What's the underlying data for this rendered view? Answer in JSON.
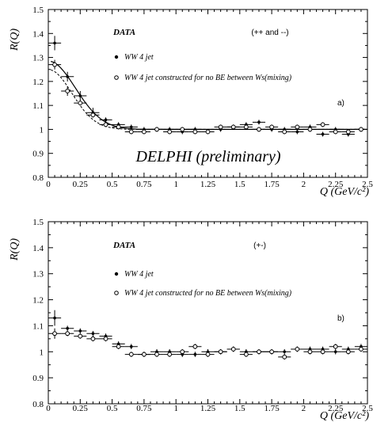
{
  "chart_data": [
    {
      "type": "scatter",
      "panel_tag": "a)",
      "charge_label": "(++ and --)",
      "data_label": "DATA",
      "watermark": "DELPHI (preliminary)",
      "ylabel": "R(Q)",
      "xlabel": "Q (GeV/c²)",
      "xlim": [
        0,
        2.5
      ],
      "ylim": [
        0.8,
        1.5
      ],
      "xticks": [
        "0",
        "0.25",
        "0.5",
        "0.75",
        "1",
        "1.25",
        "1.5",
        "1.75",
        "2",
        "2.25",
        "2.5"
      ],
      "yticks": [
        "0.8",
        "0.9",
        "1",
        "1.1",
        "1.2",
        "1.3",
        "1.4",
        "1.5"
      ],
      "series": [
        {
          "name": "WW 4 jet",
          "marker": "filled",
          "x": [
            0.05,
            0.15,
            0.25,
            0.35,
            0.45,
            0.55,
            0.65,
            0.75,
            0.85,
            0.95,
            1.05,
            1.15,
            1.25,
            1.35,
            1.45,
            1.55,
            1.65,
            1.75,
            1.85,
            1.95,
            2.05,
            2.15,
            2.25,
            2.35,
            2.45
          ],
          "y": [
            1.36,
            1.22,
            1.14,
            1.07,
            1.04,
            1.02,
            1.01,
            1.0,
            1.0,
            1.0,
            0.99,
            1.0,
            0.99,
            1.0,
            1.01,
            1.02,
            1.03,
            1.0,
            1.0,
            0.99,
            1.01,
            0.98,
            1.0,
            0.98,
            1.0
          ],
          "yerr": [
            0.03,
            0.02,
            0.02,
            0.02,
            0.01,
            0.01,
            0.01,
            0.01,
            0.01,
            0.01,
            0.01,
            0.01,
            0.01,
            0.01,
            0.01,
            0.01,
            0.01,
            0.01,
            0.01,
            0.01,
            0.01,
            0.01,
            0.01,
            0.01,
            0.01
          ]
        },
        {
          "name": "WW 4 jet constructed for no BE between Ws(mixing)",
          "marker": "open",
          "x": [
            0.05,
            0.15,
            0.25,
            0.35,
            0.45,
            0.55,
            0.65,
            0.75,
            0.85,
            0.95,
            1.05,
            1.15,
            1.25,
            1.35,
            1.45,
            1.55,
            1.65,
            1.75,
            1.85,
            1.95,
            2.05,
            2.15,
            2.25,
            2.35,
            2.45
          ],
          "y": [
            1.27,
            1.16,
            1.11,
            1.06,
            1.02,
            1.01,
            0.99,
            0.99,
            1.0,
            0.99,
            1.0,
            0.99,
            0.99,
            1.01,
            1.01,
            1.01,
            1.0,
            1.01,
            0.99,
            1.01,
            1.0,
            1.02,
            0.99,
            0.99,
            1.0
          ],
          "yerr": [
            0.02,
            0.02,
            0.01,
            0.01,
            0.01,
            0.01,
            0.01,
            0.01,
            0.01,
            0.01,
            0.01,
            0.01,
            0.01,
            0.01,
            0.01,
            0.01,
            0.01,
            0.01,
            0.01,
            0.01,
            0.01,
            0.01,
            0.01,
            0.01,
            0.01
          ]
        }
      ]
    },
    {
      "type": "scatter",
      "panel_tag": "b)",
      "charge_label": "(+-)",
      "data_label": "DATA",
      "ylabel": "R(Q)",
      "xlabel": "Q (GeV/c²)",
      "xlim": [
        0,
        2.5
      ],
      "ylim": [
        0.8,
        1.5
      ],
      "xticks": [
        "0",
        "0.25",
        "0.5",
        "0.75",
        "1",
        "1.25",
        "1.5",
        "1.75",
        "2",
        "2.25",
        "2.5"
      ],
      "yticks": [
        "0.8",
        "0.9",
        "1",
        "1.1",
        "1.2",
        "1.3",
        "1.4",
        "1.5"
      ],
      "series": [
        {
          "name": "WW 4 jet",
          "marker": "filled",
          "x": [
            0.05,
            0.15,
            0.25,
            0.35,
            0.45,
            0.55,
            0.65,
            0.75,
            0.85,
            0.95,
            1.05,
            1.15,
            1.25,
            1.35,
            1.45,
            1.55,
            1.65,
            1.75,
            1.85,
            1.95,
            2.05,
            2.15,
            2.25,
            2.35,
            2.45
          ],
          "y": [
            1.13,
            1.09,
            1.08,
            1.07,
            1.06,
            1.03,
            1.02,
            0.99,
            1.0,
            1.0,
            0.99,
            0.99,
            1.0,
            1.0,
            1.01,
            1.0,
            1.0,
            1.0,
            1.0,
            1.01,
            1.01,
            1.01,
            1.0,
            1.01,
            1.02
          ],
          "yerr": [
            0.03,
            0.01,
            0.01,
            0.01,
            0.01,
            0.01,
            0.01,
            0.01,
            0.01,
            0.01,
            0.01,
            0.01,
            0.01,
            0.01,
            0.01,
            0.01,
            0.01,
            0.01,
            0.01,
            0.01,
            0.01,
            0.01,
            0.01,
            0.01,
            0.01
          ]
        },
        {
          "name": "WW 4 jet constructed for no BE between Ws(mixing)",
          "marker": "open",
          "x": [
            0.05,
            0.15,
            0.25,
            0.35,
            0.45,
            0.55,
            0.65,
            0.75,
            0.85,
            0.95,
            1.05,
            1.15,
            1.25,
            1.35,
            1.45,
            1.55,
            1.65,
            1.75,
            1.85,
            1.95,
            2.05,
            2.15,
            2.25,
            2.35,
            2.45
          ],
          "y": [
            1.07,
            1.07,
            1.06,
            1.05,
            1.05,
            1.02,
            0.99,
            0.99,
            0.99,
            0.99,
            1.0,
            1.02,
            0.99,
            1.0,
            1.01,
            0.99,
            1.0,
            1.0,
            0.98,
            1.01,
            1.0,
            1.0,
            1.02,
            1.0,
            1.01
          ],
          "yerr": [
            0.02,
            0.01,
            0.01,
            0.01,
            0.01,
            0.01,
            0.01,
            0.01,
            0.01,
            0.01,
            0.01,
            0.01,
            0.01,
            0.01,
            0.01,
            0.01,
            0.01,
            0.01,
            0.01,
            0.01,
            0.01,
            0.01,
            0.01,
            0.01,
            0.01
          ]
        }
      ]
    }
  ]
}
